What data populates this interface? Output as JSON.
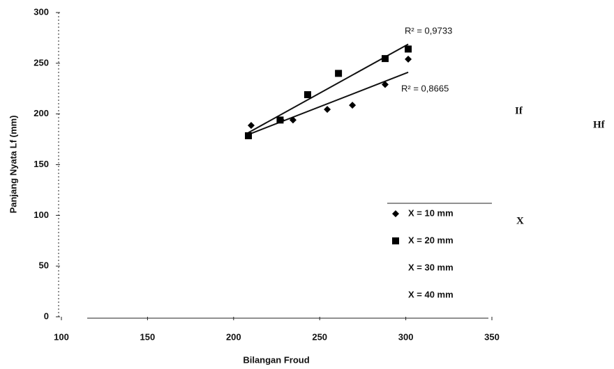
{
  "chart_data": {
    "type": "scatter",
    "xlabel": "Bilangan Froud",
    "ylabel": "Panjang Nyata Lf (mm)",
    "xlim": [
      100,
      350
    ],
    "xticks": [
      100,
      150,
      200,
      250,
      300,
      350
    ],
    "ylim": [
      0,
      300
    ],
    "yticks": [
      0,
      50,
      100,
      150,
      200,
      250,
      300
    ],
    "trendline": true,
    "series": [
      {
        "name": "X = 10 mm",
        "marker": "diamond",
        "color": "#000000",
        "x": [
          210.2,
          227.6,
          234.5,
          254.4,
          269,
          288,
          301.4
        ],
        "values": [
          188.7,
          194,
          194,
          204.5,
          208.6,
          229,
          254
        ],
        "r2_label": "R² = 0,8665"
      },
      {
        "name": "X = 20 mm",
        "marker": "square",
        "color": "#000000",
        "x": [
          208.6,
          227,
          243,
          260.9,
          288,
          301.4
        ],
        "values": [
          178.5,
          194,
          219,
          240,
          254.6,
          264
        ],
        "r2_label": "R² = 0,9733"
      },
      {
        "name": "X = 30 mm",
        "marker": "none",
        "color": "#000000",
        "x": [],
        "values": []
      },
      {
        "name": "X = 40 mm",
        "marker": "none",
        "color": "#000000",
        "x": [],
        "values": []
      }
    ],
    "side_fragments": [
      "If",
      "Hf",
      "X"
    ]
  }
}
